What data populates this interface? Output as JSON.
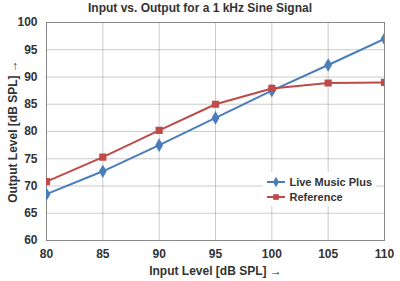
{
  "chart_data": {
    "type": "line",
    "title": "Input vs. Output for a 1 kHz Sine Signal",
    "x_label": "Input Level [dB SPL]",
    "y_label": "Output Level [dB SPL]",
    "x": [
      80,
      85,
      90,
      95,
      100,
      105,
      110
    ],
    "series": [
      {
        "name": "Live Music Plus",
        "color": "#4a7ebb",
        "marker": "diamond",
        "values": [
          68.5,
          72.7,
          77.5,
          82.5,
          87.5,
          92.2,
          97
        ]
      },
      {
        "name": "Reference",
        "color": "#be4b48",
        "marker": "square",
        "values": [
          70.8,
          75.3,
          80.2,
          85,
          87.9,
          88.9,
          89
        ]
      }
    ],
    "xlim": [
      80,
      110
    ],
    "xticks": [
      80,
      85,
      90,
      95,
      100,
      105,
      110
    ],
    "ylim": [
      60,
      100
    ],
    "yticks": [
      60,
      65,
      70,
      75,
      80,
      85,
      90,
      95,
      100
    ],
    "grid": true,
    "legend": "right"
  }
}
